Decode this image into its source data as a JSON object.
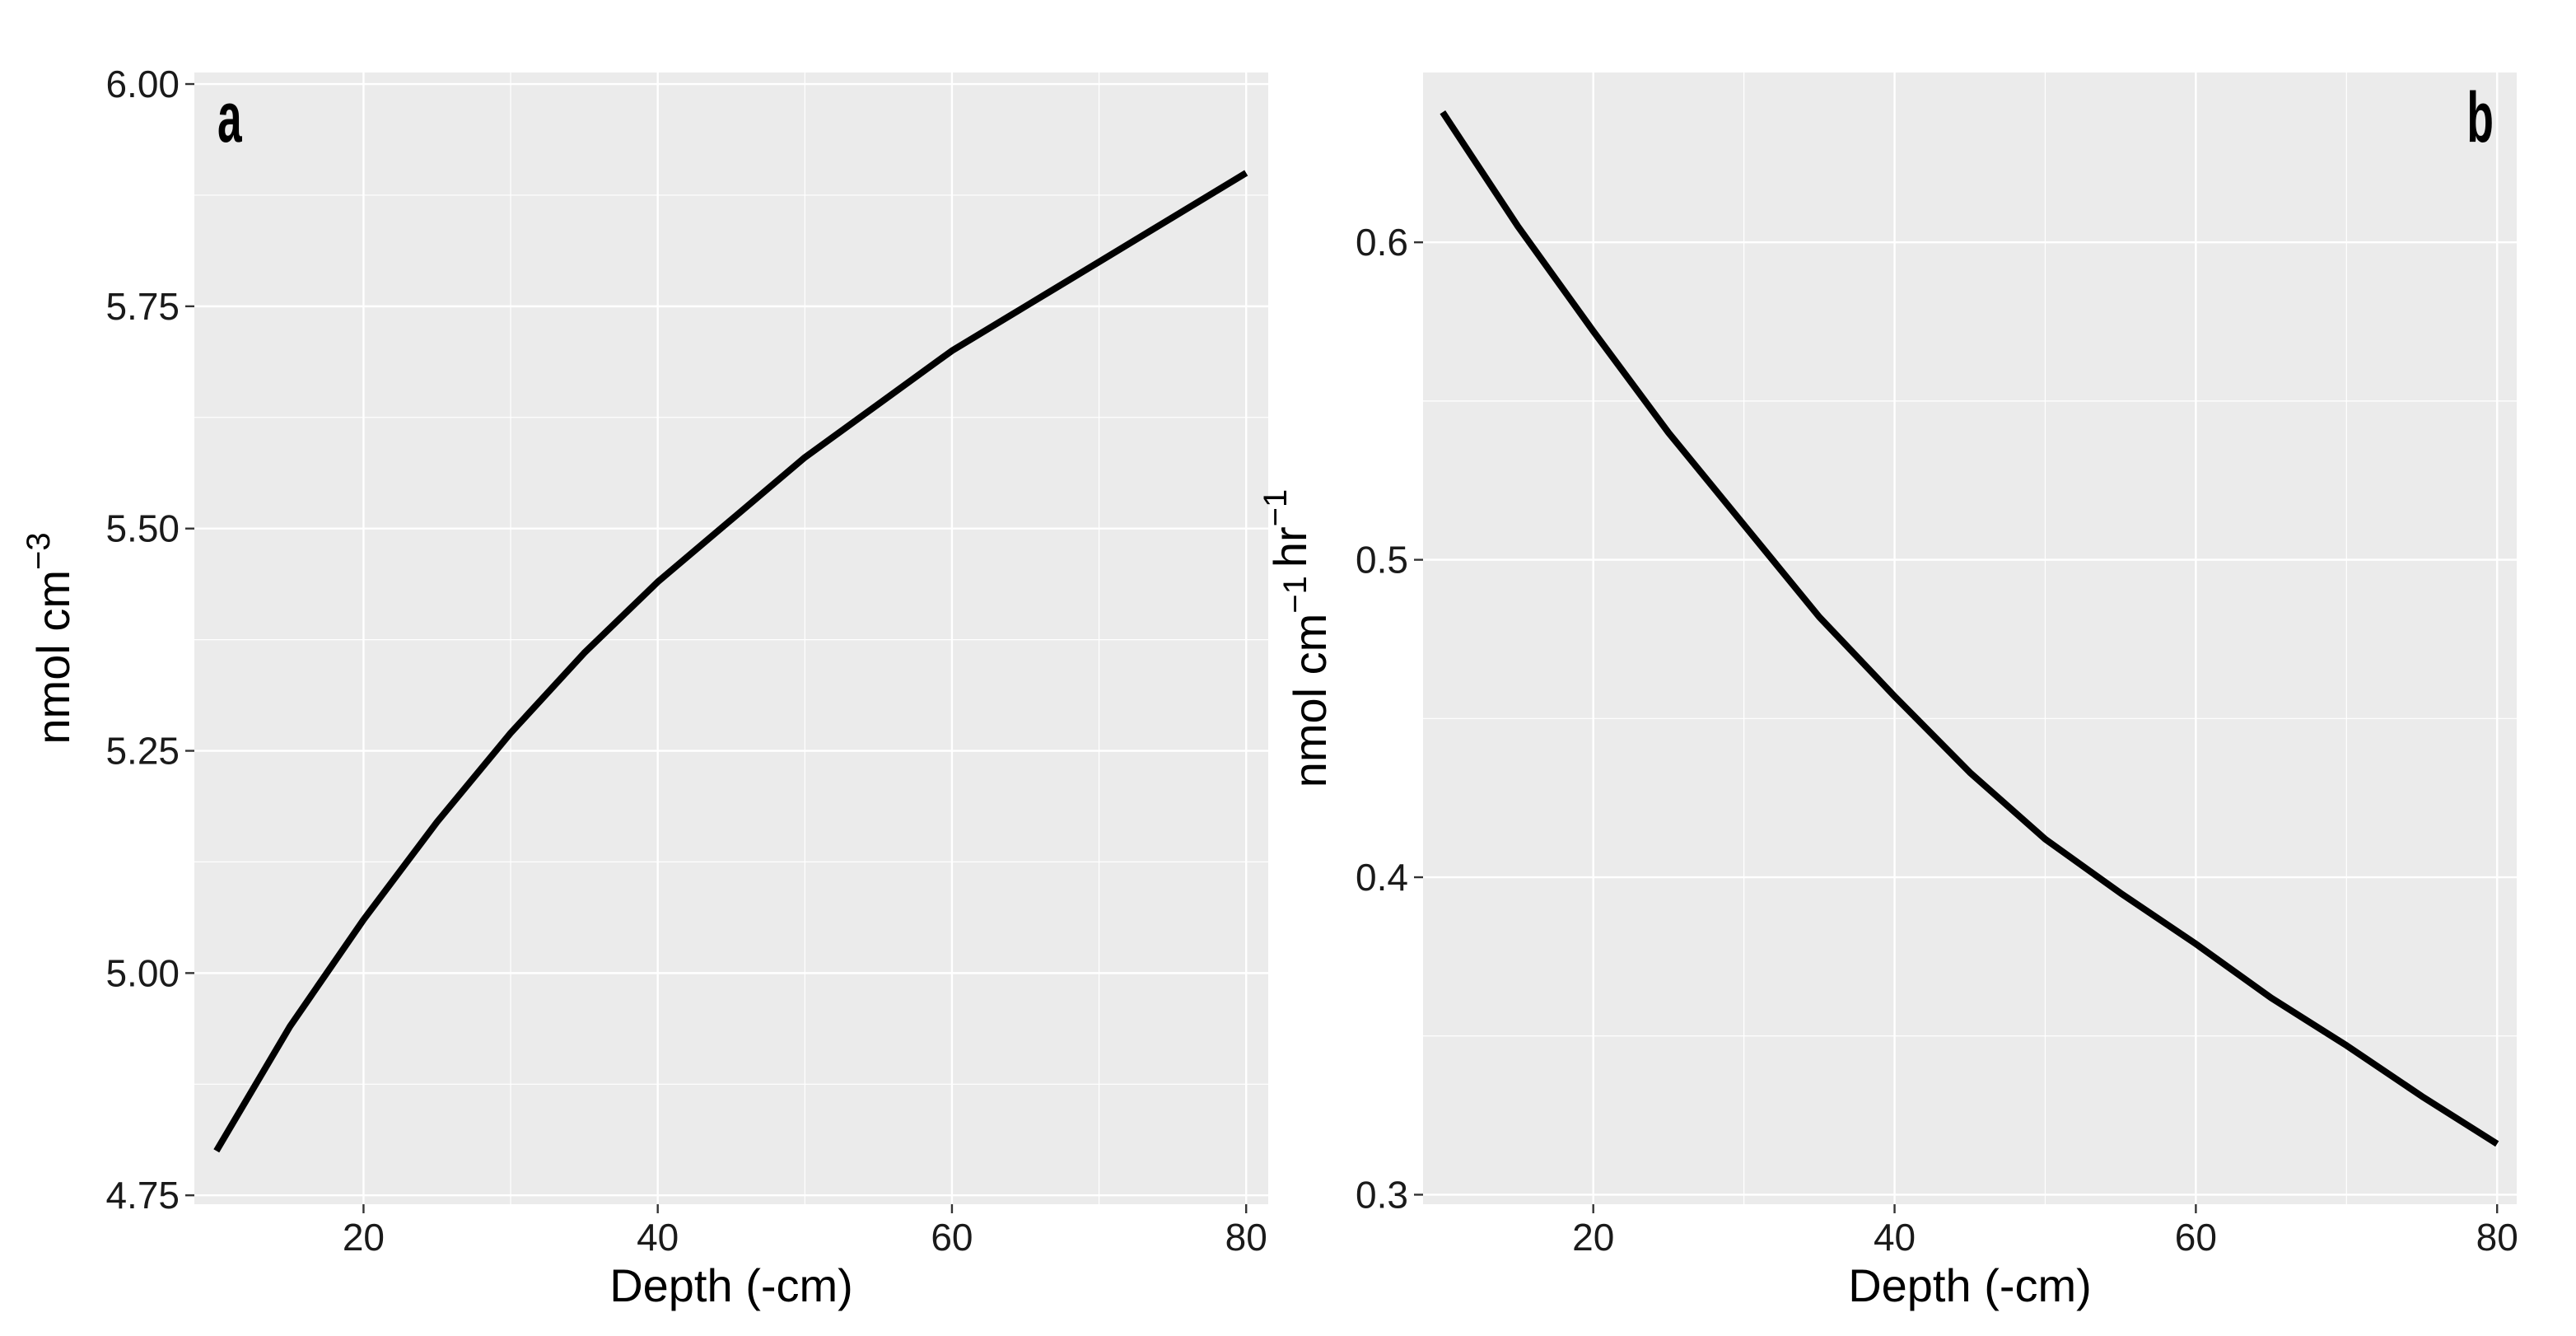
{
  "chart_data": [
    {
      "type": "line",
      "panel_label": "a",
      "panel_label_corner": "top-left",
      "xlabel": "Depth (-cm)",
      "ylabel": [
        {
          "text": "nmol  cm",
          "sup": "−3"
        }
      ],
      "x": [
        10,
        15,
        20,
        25,
        30,
        35,
        40,
        45,
        50,
        55,
        60,
        65,
        70,
        75,
        80
      ],
      "series": [
        {
          "color": "#000000",
          "values": [
            4.8,
            4.94,
            5.06,
            5.17,
            5.27,
            5.36,
            5.44,
            5.51,
            5.58,
            5.64,
            5.7,
            5.75,
            5.8,
            5.85,
            5.9
          ]
        }
      ],
      "xlim": [
        8.5,
        81.5
      ],
      "xticks": [
        20,
        40,
        60,
        80
      ],
      "ylim": [
        4.74,
        6.013
      ],
      "yticks": [
        {
          "value": 4.75,
          "label": "4.75"
        },
        {
          "value": 5,
          "label": "5.00"
        },
        5.25,
        {
          "value": 5.5,
          "label": "5.50"
        },
        5.75,
        {
          "value": 6,
          "label": "6.00"
        }
      ],
      "grid": true
    },
    {
      "type": "line",
      "panel_label": "b",
      "panel_label_corner": "top-right",
      "xlabel": "Depth (-cm)",
      "ylabel": [
        {
          "text": "nmol  cm",
          "sup": "−1"
        },
        {
          "text": "hr",
          "sup": "−1"
        }
      ],
      "x": [
        10,
        15,
        20,
        25,
        30,
        35,
        40,
        45,
        50,
        55,
        60,
        65,
        70,
        75,
        80
      ],
      "series": [
        {
          "color": "#000000",
          "values": [
            0.641,
            0.605,
            0.572,
            0.54,
            0.511,
            0.482,
            0.457,
            0.433,
            0.412,
            0.395,
            0.379,
            0.362,
            0.347,
            0.331,
            0.316
          ]
        }
      ],
      "xlim": [
        8.7,
        81.3
      ],
      "xticks": [
        20,
        40,
        60,
        80
      ],
      "ylim": [
        0.297,
        0.6535
      ],
      "yticks": [
        0.3,
        0.4,
        0.5,
        0.6
      ],
      "grid": true
    }
  ]
}
